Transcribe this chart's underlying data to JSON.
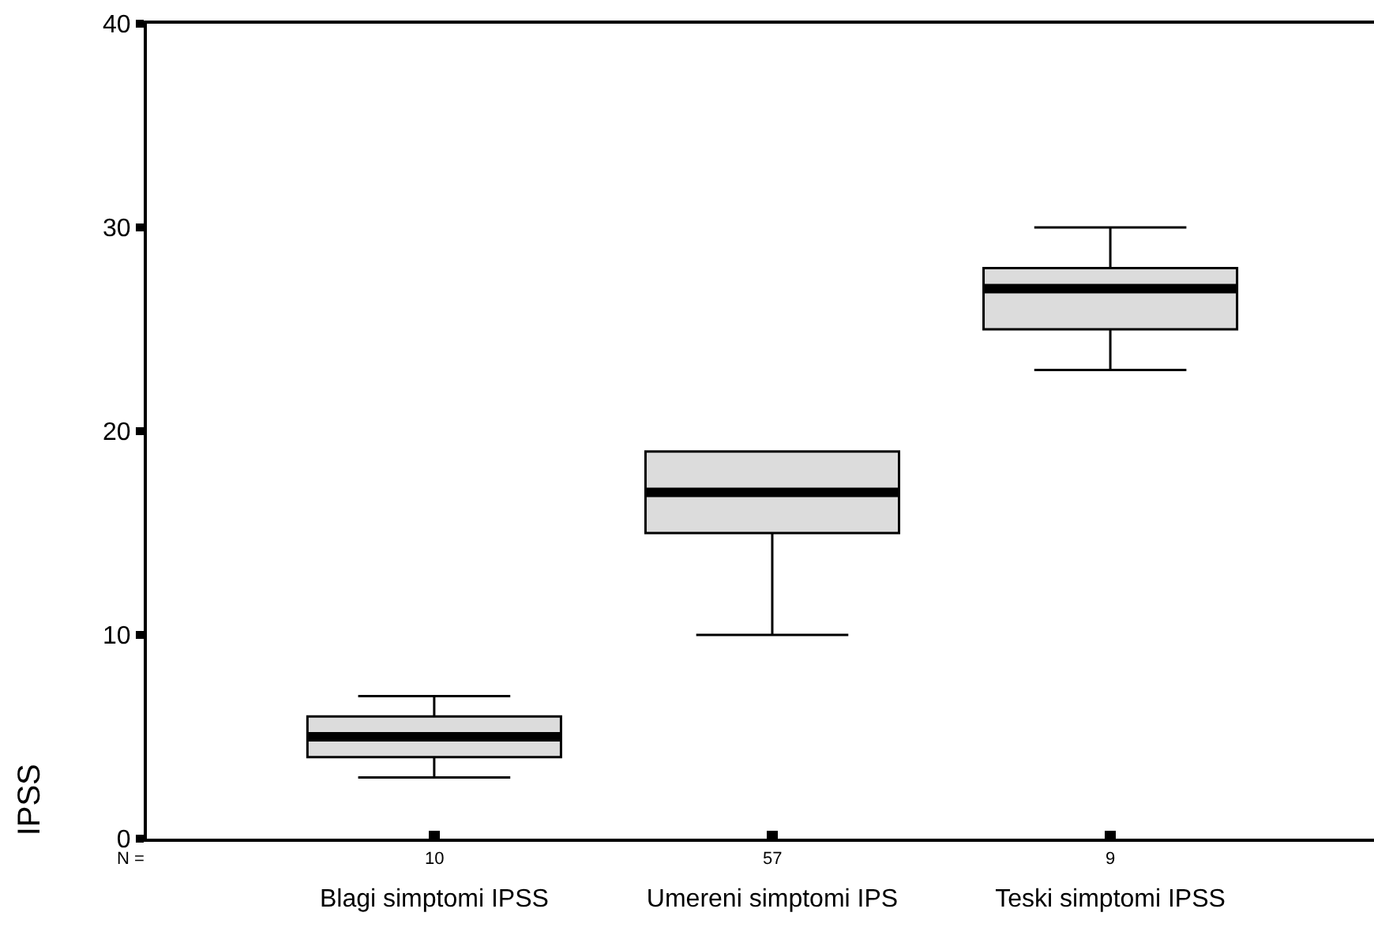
{
  "chart_data": {
    "type": "box",
    "ylabel": "IPSS",
    "categories": [
      "Blagi simptomi IPSS",
      "Umereni simptomi IPS",
      "Teski simptomi IPSS"
    ],
    "boxes": [
      {
        "low": 3,
        "q1": 4,
        "median": 5,
        "q3": 6,
        "high": 7
      },
      {
        "low": 10,
        "q1": 15,
        "median": 17,
        "q3": 19,
        "high": 19
      },
      {
        "low": 23,
        "q1": 25,
        "median": 27,
        "q3": 28,
        "high": 30
      }
    ],
    "color": "#dcdcdc",
    "ylim": [
      0,
      40
    ],
    "yticks": [
      0,
      10,
      20,
      30,
      40
    ],
    "legend": false,
    "annotations": [
      "N =",
      "10",
      "57",
      "9"
    ]
  }
}
